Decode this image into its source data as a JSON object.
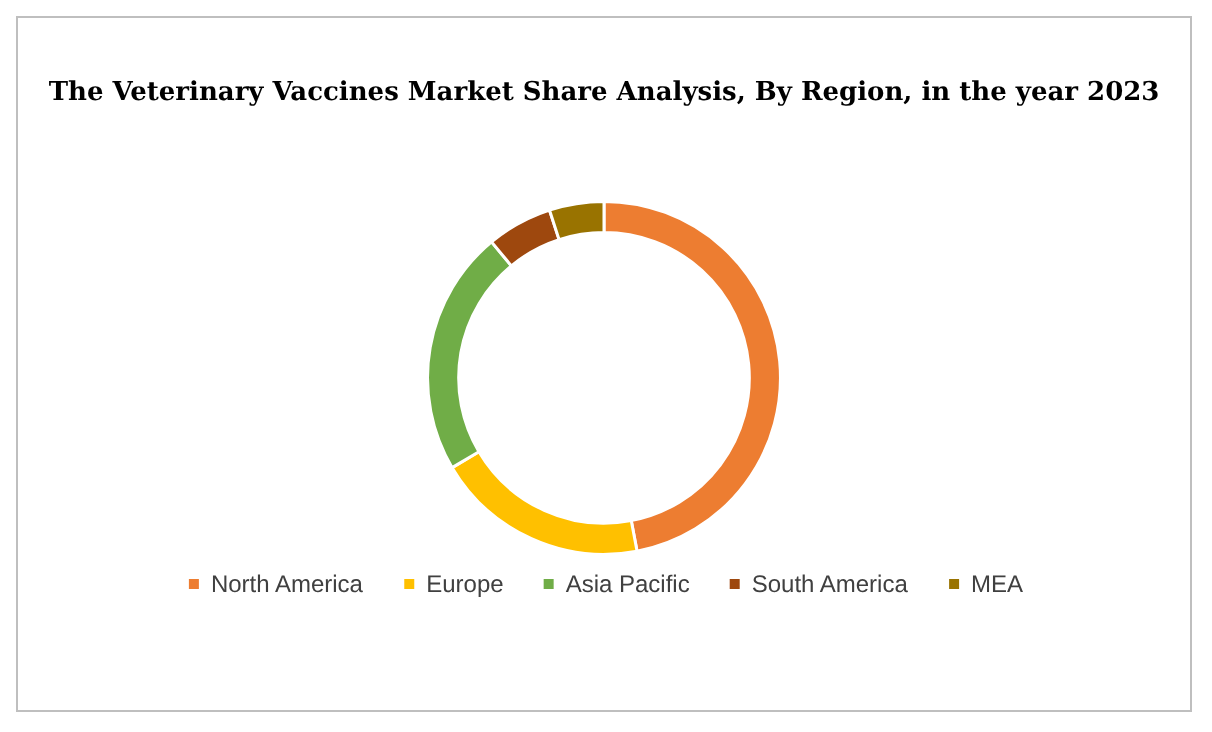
{
  "chart_data": {
    "type": "donut",
    "title": "The Veterinary Vaccines Market Share Analysis, By Region, in the year 2023",
    "categories": [
      "North America",
      "Europe",
      "Asia Pacific",
      "South America",
      "MEA"
    ],
    "values": [
      47,
      19.5,
      22.5,
      6,
      5
    ],
    "colors": [
      "#ed7d31",
      "#ffc000",
      "#70ad47",
      "#9e480e",
      "#997300"
    ],
    "legend": "bottom"
  }
}
